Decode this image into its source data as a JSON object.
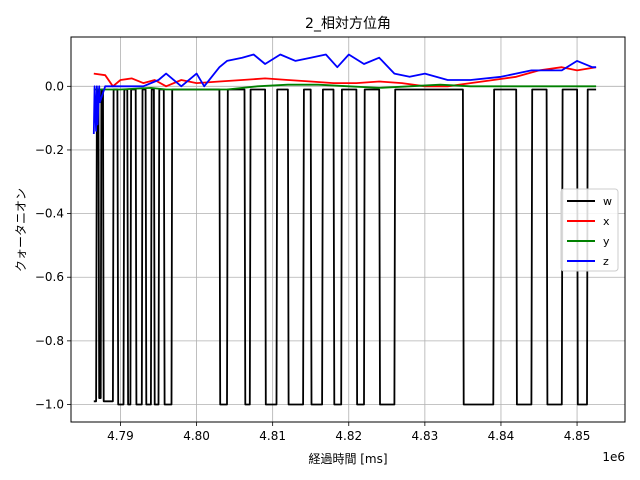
{
  "chart_data": {
    "type": "line",
    "title": "2_相対方位角",
    "xlabel": "経過時間 [ms]",
    "ylabel": "クォータニオン",
    "x_offset_label": "1e6",
    "xlim": [
      4.7835,
      4.8563
    ],
    "ylim": [
      -1.055,
      0.155
    ],
    "x_ticks": [
      4.79,
      4.8,
      4.81,
      4.82,
      4.83,
      4.84,
      4.85
    ],
    "x_tick_labels": [
      "4.79",
      "4.80",
      "4.81",
      "4.82",
      "4.83",
      "4.84",
      "4.85"
    ],
    "y_ticks": [
      0.0,
      -0.2,
      -0.4,
      -0.6,
      -0.8,
      -1.0
    ],
    "y_tick_labels": [
      "0.0",
      "−0.2",
      "−0.4",
      "−0.6",
      "−0.8",
      "−1.0"
    ],
    "grid": true,
    "legend_position": "center-right",
    "series": [
      {
        "name": "w",
        "color": "#000000",
        "x": [
          4.7865,
          4.7868,
          4.7869,
          4.7871,
          4.7872,
          4.7874,
          4.7875,
          4.7877,
          4.7878,
          4.789,
          4.7891,
          4.7896,
          4.7897,
          4.7904,
          4.7905,
          4.7909,
          4.791,
          4.7913,
          4.7914,
          4.792,
          4.7921,
          4.7928,
          4.7929,
          4.7933,
          4.7934,
          4.794,
          4.7941,
          4.7944,
          4.7945,
          4.795,
          4.7951,
          4.7957,
          4.7958,
          4.7967,
          4.7968,
          4.797,
          4.803,
          4.8031,
          4.804,
          4.8041,
          4.8063,
          4.8064,
          4.807,
          4.8071,
          4.809,
          4.8091,
          4.8105,
          4.8106,
          4.812,
          4.8121,
          4.814,
          4.8141,
          4.815,
          4.8151,
          4.8165,
          4.8166,
          4.818,
          4.8181,
          4.819,
          4.8191,
          4.821,
          4.8211,
          4.822,
          4.8221,
          4.824,
          4.8241,
          4.826,
          4.8261,
          4.827,
          4.835,
          4.8351,
          4.839,
          4.8391,
          4.842,
          4.8421,
          4.844,
          4.8441,
          4.846,
          4.8461,
          4.848,
          4.8481,
          4.85,
          4.8501,
          4.8513,
          4.8514,
          4.8525
        ],
        "y": [
          -0.99,
          -0.99,
          -0.01,
          -0.01,
          -0.98,
          -0.98,
          -0.01,
          -0.01,
          -0.99,
          -0.99,
          -0.01,
          -0.01,
          -1.0,
          -1.0,
          -0.01,
          -0.01,
          -1.0,
          -1.0,
          -0.01,
          -0.01,
          -1.0,
          -1.0,
          -0.01,
          -0.01,
          -1.0,
          -1.0,
          -0.01,
          -0.01,
          -1.0,
          -1.0,
          -0.01,
          -0.01,
          -1.0,
          -1.0,
          -0.01,
          -0.01,
          -0.01,
          -1.0,
          -1.0,
          -0.01,
          -0.01,
          -1.0,
          -1.0,
          -0.01,
          -0.01,
          -1.0,
          -1.0,
          -0.01,
          -0.01,
          -1.0,
          -1.0,
          -0.01,
          -0.01,
          -1.0,
          -1.0,
          -0.01,
          -0.01,
          -1.0,
          -1.0,
          -0.01,
          -0.01,
          -1.0,
          -1.0,
          -0.01,
          -0.01,
          -1.0,
          -1.0,
          -0.01,
          -0.01,
          -0.01,
          -1.0,
          -1.0,
          -0.01,
          -0.01,
          -1.0,
          -1.0,
          -0.01,
          -0.01,
          -1.0,
          -1.0,
          -0.01,
          -0.01,
          -1.0,
          -1.0,
          -0.01,
          -0.01
        ]
      },
      {
        "name": "x",
        "color": "#ff0000",
        "x": [
          4.7865,
          4.788,
          4.789,
          4.79,
          4.7915,
          4.793,
          4.7945,
          4.796,
          4.798,
          4.8,
          4.803,
          4.806,
          4.809,
          4.812,
          4.815,
          4.818,
          4.821,
          4.824,
          4.827,
          4.83,
          4.833,
          4.836,
          4.839,
          4.842,
          4.845,
          4.848,
          4.85,
          4.8525
        ],
        "y": [
          0.04,
          0.035,
          0.0,
          0.02,
          0.025,
          0.01,
          0.02,
          0.0,
          0.02,
          0.01,
          0.015,
          0.02,
          0.025,
          0.02,
          0.015,
          0.01,
          0.01,
          0.015,
          0.01,
          0.0,
          0.0,
          0.01,
          0.02,
          0.03,
          0.05,
          0.06,
          0.05,
          0.06
        ]
      },
      {
        "name": "y",
        "color": "#008000",
        "x": [
          4.7865,
          4.79,
          4.794,
          4.796,
          4.8,
          4.804,
          4.808,
          4.812,
          4.816,
          4.82,
          4.824,
          4.828,
          4.832,
          4.836,
          4.84,
          4.844,
          4.848,
          4.8525
        ],
        "y": [
          -0.01,
          -0.01,
          -0.005,
          -0.01,
          -0.01,
          -0.01,
          0.0,
          0.005,
          0.005,
          0.0,
          -0.005,
          0.0,
          0.005,
          0.0,
          0.0,
          0.0,
          0.0,
          0.0
        ]
      },
      {
        "name": "z",
        "color": "#0000ff",
        "x": [
          4.7865,
          4.7866,
          4.7868,
          4.7869,
          4.787,
          4.7872,
          4.7873,
          4.788,
          4.79,
          4.793,
          4.795,
          4.796,
          4.798,
          4.8,
          4.801,
          4.803,
          4.804,
          4.806,
          4.8075,
          4.809,
          4.811,
          4.813,
          4.815,
          4.817,
          4.8185,
          4.82,
          4.822,
          4.824,
          4.826,
          4.828,
          4.83,
          4.833,
          4.836,
          4.84,
          4.844,
          4.848,
          4.85,
          4.852,
          4.8525
        ],
        "y": [
          -0.15,
          0.0,
          -0.14,
          0.0,
          -0.12,
          0.0,
          -0.05,
          0.0,
          0.0,
          0.0,
          0.02,
          0.04,
          0.0,
          0.04,
          0.0,
          0.06,
          0.08,
          0.09,
          0.1,
          0.07,
          0.1,
          0.08,
          0.09,
          0.1,
          0.06,
          0.1,
          0.07,
          0.09,
          0.04,
          0.03,
          0.04,
          0.02,
          0.02,
          0.03,
          0.05,
          0.05,
          0.08,
          0.06,
          0.06
        ]
      }
    ]
  }
}
